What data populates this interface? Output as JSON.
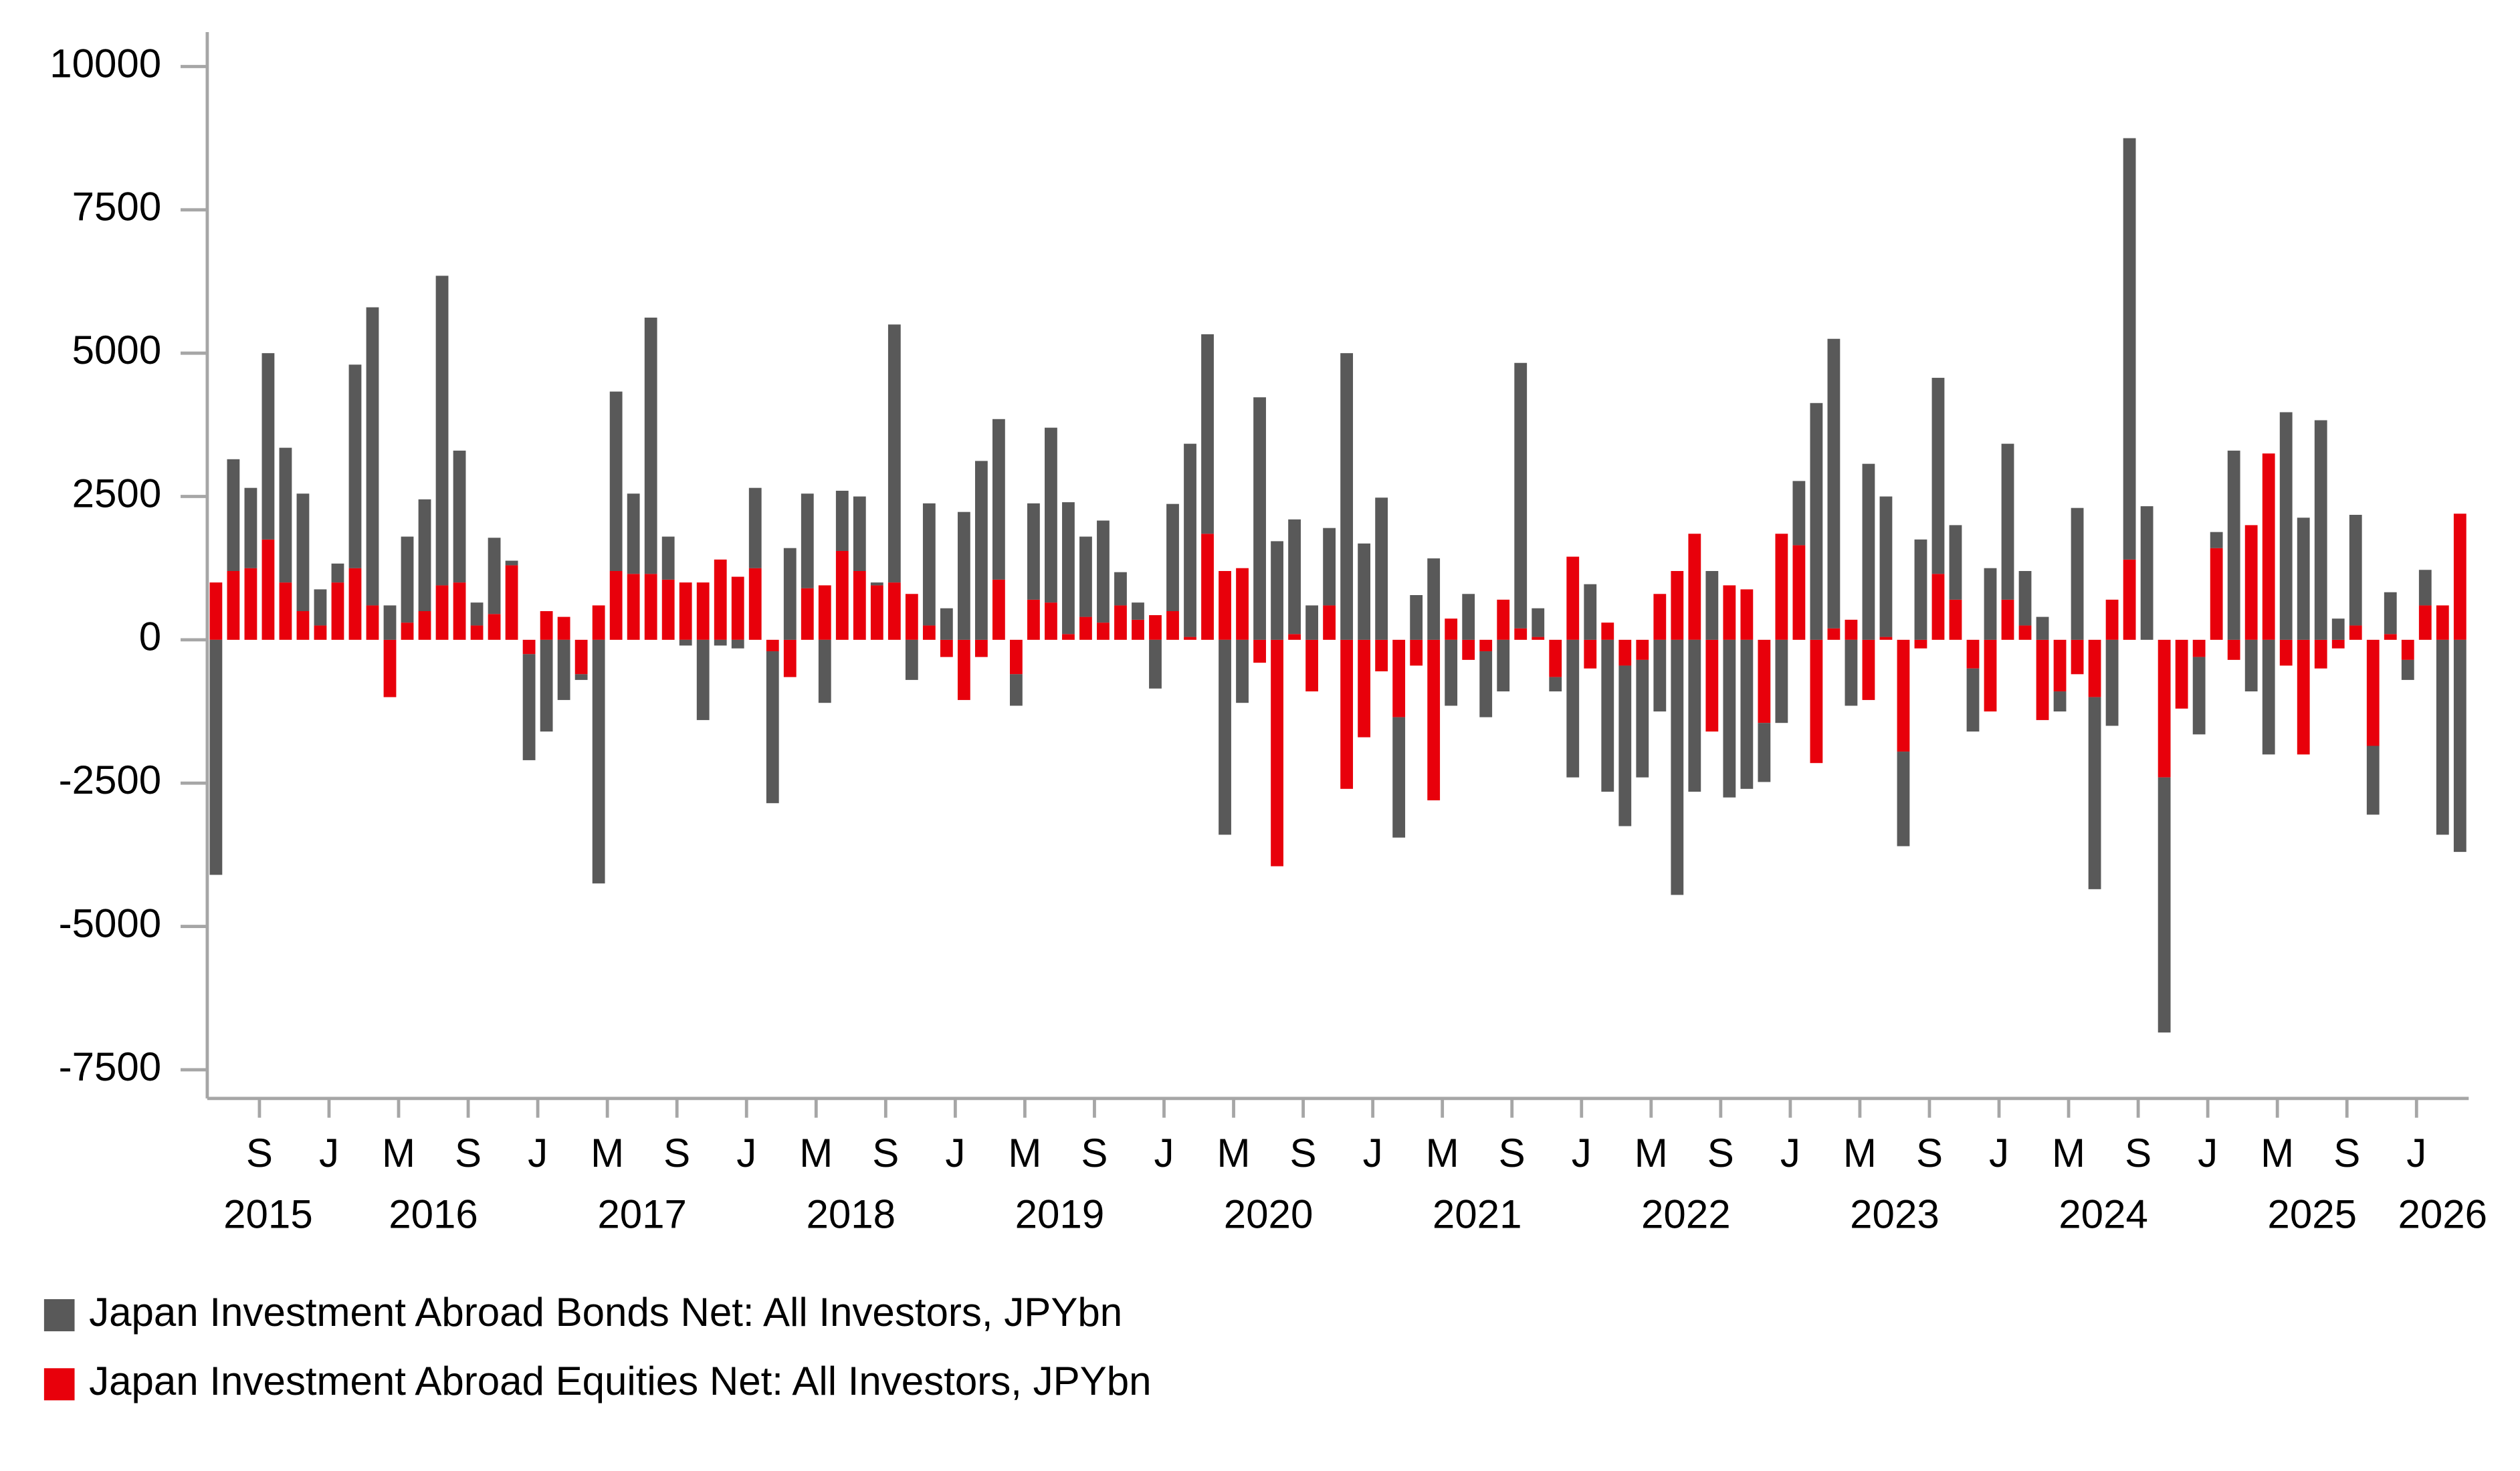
{
  "chart_data": {
    "type": "bar",
    "stacked": true,
    "x": [
      "2015-06",
      "2015-07",
      "2015-08",
      "2015-09",
      "2015-10",
      "2015-11",
      "2015-12",
      "2016-01",
      "2016-02",
      "2016-03",
      "2016-04",
      "2016-05",
      "2016-06",
      "2016-07",
      "2016-08",
      "2016-09",
      "2016-10",
      "2016-11",
      "2016-12",
      "2017-01",
      "2017-02",
      "2017-03",
      "2017-04",
      "2017-05",
      "2017-06",
      "2017-07",
      "2017-08",
      "2017-09",
      "2017-10",
      "2017-11",
      "2017-12",
      "2018-01",
      "2018-02",
      "2018-03",
      "2018-04",
      "2018-05",
      "2018-06",
      "2018-07",
      "2018-08",
      "2018-09",
      "2018-10",
      "2018-11",
      "2018-12",
      "2019-01",
      "2019-02",
      "2019-03",
      "2019-04",
      "2019-05",
      "2019-06",
      "2019-07",
      "2019-08",
      "2019-09",
      "2019-10",
      "2019-11",
      "2019-12",
      "2020-01",
      "2020-02",
      "2020-03",
      "2020-04",
      "2020-05",
      "2020-06",
      "2020-07",
      "2020-08",
      "2020-09",
      "2020-10",
      "2020-11",
      "2020-12",
      "2021-01",
      "2021-02",
      "2021-03",
      "2021-04",
      "2021-05",
      "2021-06",
      "2021-07",
      "2021-08",
      "2021-09",
      "2021-10",
      "2021-11",
      "2021-12",
      "2022-01",
      "2022-02",
      "2022-03",
      "2022-04",
      "2022-05",
      "2022-06",
      "2022-07",
      "2022-08",
      "2022-09",
      "2022-10",
      "2022-11",
      "2022-12",
      "2023-01",
      "2023-02",
      "2023-03",
      "2023-04",
      "2023-05",
      "2023-06",
      "2023-07",
      "2023-08",
      "2023-09",
      "2023-10",
      "2023-11",
      "2023-12",
      "2024-01",
      "2024-02",
      "2024-03",
      "2024-04",
      "2024-05",
      "2024-06",
      "2024-07",
      "2024-08",
      "2024-09",
      "2024-10",
      "2024-11",
      "2024-12",
      "2025-01",
      "2025-02",
      "2025-03",
      "2025-04",
      "2025-05",
      "2025-06",
      "2025-07",
      "2025-08",
      "2025-09",
      "2025-10",
      "2025-11",
      "2025-12",
      "2026-01",
      "2026-02",
      "2026-03"
    ],
    "series": [
      {
        "name": "Japan Investment Abroad Bonds Net: All Investors, JPYbn",
        "color": "#595959",
        "values": [
          -4100,
          1950,
          1400,
          3250,
          2350,
          2050,
          630,
          330,
          3550,
          5200,
          600,
          1500,
          1950,
          5400,
          2300,
          400,
          1330,
          80,
          -1850,
          -1600,
          -1050,
          -100,
          -4250,
          3130,
          1400,
          4470,
          750,
          -100,
          -1400,
          -100,
          -150,
          1400,
          -2650,
          1600,
          1650,
          -1100,
          1050,
          1300,
          50,
          4500,
          -700,
          2130,
          550,
          2230,
          3120,
          2800,
          -550,
          1680,
          3050,
          2300,
          1400,
          1780,
          580,
          300,
          -850,
          1870,
          3370,
          3480,
          -3400,
          -1100,
          4230,
          1720,
          2000,
          600,
          1350,
          5000,
          1680,
          2480,
          -2100,
          780,
          1420,
          -1150,
          800,
          -1150,
          -900,
          4630,
          500,
          -250,
          -2400,
          970,
          -2650,
          -2800,
          -2050,
          -1250,
          -4450,
          -2650,
          1200,
          -2750,
          -2600,
          -1030,
          -1450,
          1120,
          4130,
          5050,
          -1150,
          3070,
          2450,
          -1650,
          1750,
          3420,
          1300,
          -1100,
          1250,
          2720,
          950,
          400,
          -350,
          2300,
          -3350,
          -1500,
          7350,
          2330,
          -4450,
          0,
          -1350,
          280,
          3300,
          -900,
          -2000,
          3970,
          2130,
          3830,
          370,
          1930,
          -1200,
          730,
          -350,
          620,
          -3400,
          -3700
        ]
      },
      {
        "name": "Japan Investment Abroad Equities Net: All Investors, JPYbn",
        "color": "#e8000b",
        "values": [
          1000,
          1200,
          1250,
          1750,
          1000,
          500,
          250,
          1000,
          1250,
          600,
          -1000,
          300,
          500,
          950,
          1000,
          250,
          450,
          1300,
          -250,
          500,
          400,
          -600,
          600,
          1200,
          1150,
          1150,
          1050,
          1000,
          1000,
          1400,
          1100,
          1250,
          -200,
          -650,
          900,
          950,
          1550,
          1200,
          950,
          1000,
          800,
          250,
          -300,
          -1050,
          -300,
          1050,
          -600,
          700,
          650,
          100,
          400,
          300,
          600,
          350,
          430,
          500,
          50,
          1850,
          1200,
          1250,
          -400,
          -3950,
          100,
          -900,
          600,
          -2600,
          -1700,
          -550,
          -1350,
          -450,
          -2800,
          370,
          -350,
          -200,
          700,
          200,
          50,
          -650,
          1450,
          -500,
          300,
          -450,
          -350,
          800,
          1200,
          1850,
          -1600,
          950,
          880,
          -1450,
          1850,
          1650,
          -2150,
          200,
          350,
          -1050,
          50,
          -1950,
          -150,
          1150,
          700,
          -500,
          -1250,
          700,
          250,
          -1400,
          -900,
          -600,
          -1000,
          700,
          1400,
          0,
          -2400,
          -1200,
          -300,
          1600,
          -350,
          2000,
          3250,
          -450,
          -2000,
          -500,
          -150,
          250,
          -1850,
          100,
          -350,
          600,
          600,
          2200
        ]
      }
    ],
    "ylim": [
      -8000,
      10600
    ],
    "yticks": [
      10000,
      7500,
      5000,
      2500,
      0,
      -2500,
      -5000,
      -7500
    ],
    "xticks": [
      {
        "value": "2015-09",
        "label": "S"
      },
      {
        "value": "2016-01",
        "label": "J"
      },
      {
        "value": "2016-05",
        "label": "M"
      },
      {
        "value": "2016-09",
        "label": "S"
      },
      {
        "value": "2017-01",
        "label": "J"
      },
      {
        "value": "2017-05",
        "label": "M"
      },
      {
        "value": "2017-09",
        "label": "S"
      },
      {
        "value": "2018-01",
        "label": "J"
      },
      {
        "value": "2018-05",
        "label": "M"
      },
      {
        "value": "2018-09",
        "label": "S"
      },
      {
        "value": "2019-01",
        "label": "J"
      },
      {
        "value": "2019-05",
        "label": "M"
      },
      {
        "value": "2019-09",
        "label": "S"
      },
      {
        "value": "2020-01",
        "label": "J"
      },
      {
        "value": "2020-05",
        "label": "M"
      },
      {
        "value": "2020-09",
        "label": "S"
      },
      {
        "value": "2021-01",
        "label": "J"
      },
      {
        "value": "2021-05",
        "label": "M"
      },
      {
        "value": "2021-09",
        "label": "S"
      },
      {
        "value": "2022-01",
        "label": "J"
      },
      {
        "value": "2022-05",
        "label": "M"
      },
      {
        "value": "2022-09",
        "label": "S"
      },
      {
        "value": "2023-01",
        "label": "J"
      },
      {
        "value": "2023-05",
        "label": "M"
      },
      {
        "value": "2023-09",
        "label": "S"
      },
      {
        "value": "2024-01",
        "label": "J"
      },
      {
        "value": "2024-05",
        "label": "M"
      },
      {
        "value": "2024-09",
        "label": "S"
      },
      {
        "value": "2025-01",
        "label": "J"
      },
      {
        "value": "2025-05",
        "label": "M"
      },
      {
        "value": "2025-09",
        "label": "S"
      },
      {
        "value": "2026-01",
        "label": "J"
      }
    ],
    "year_labels": [
      "2015",
      "2016",
      "2017",
      "2018",
      "2019",
      "2020",
      "2021",
      "2022",
      "2023",
      "2024",
      "2025",
      "2026"
    ],
    "legend": "bottom-left"
  }
}
